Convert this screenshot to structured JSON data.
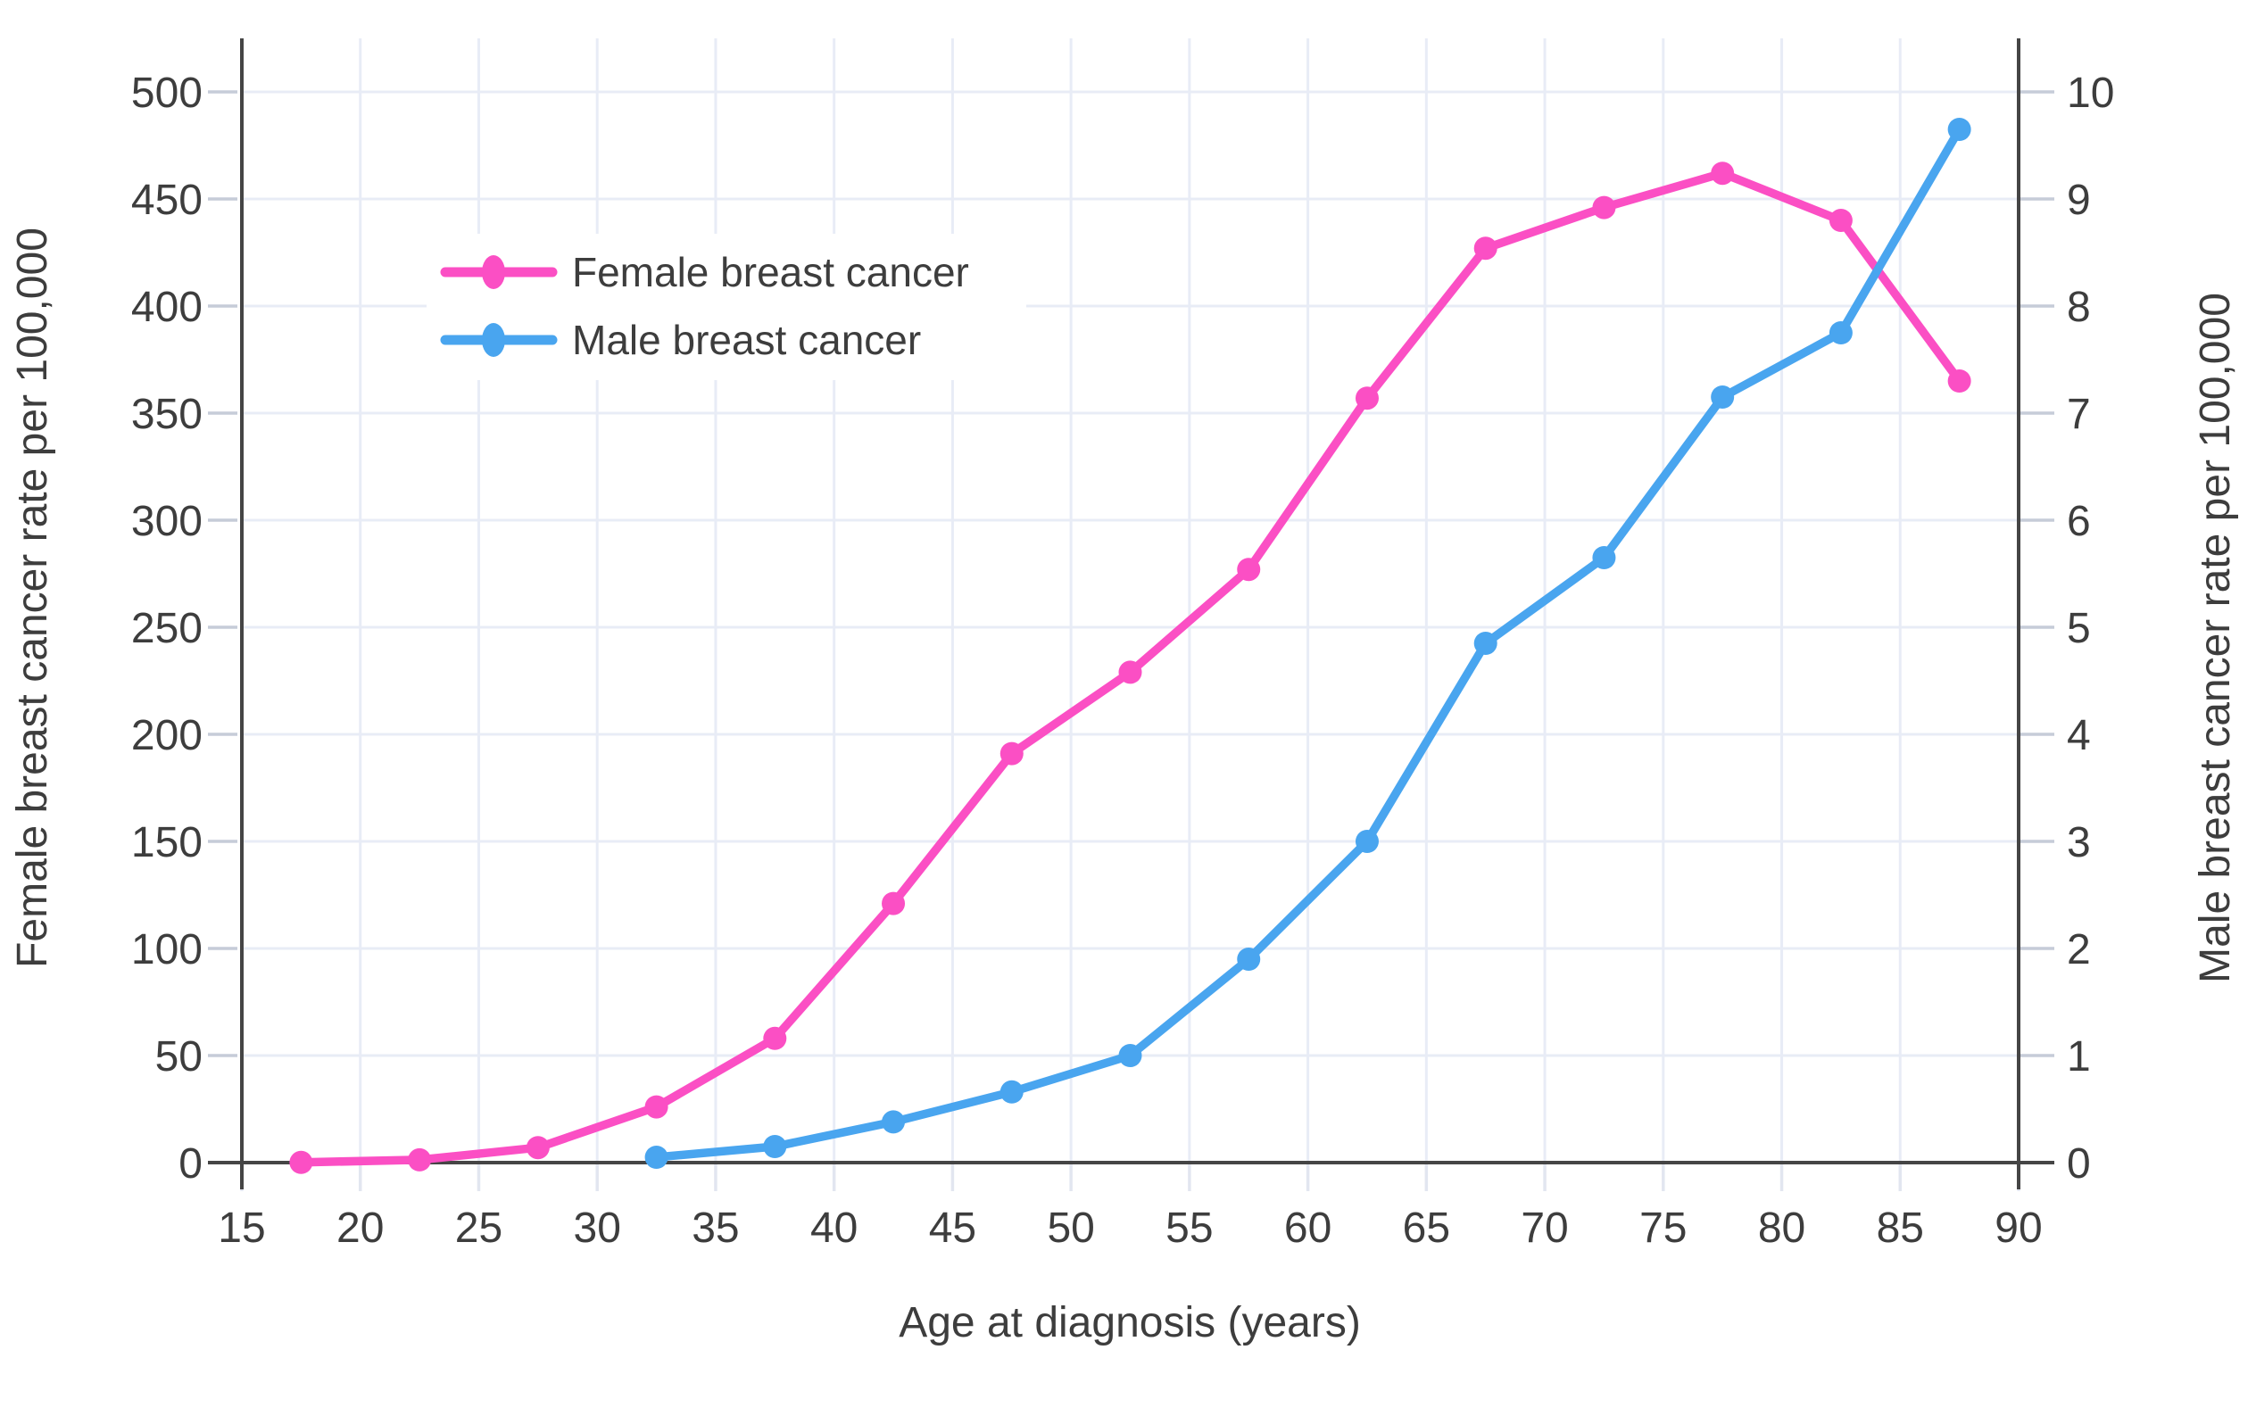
{
  "chart_data": {
    "type": "line",
    "xlabel": "Age at diagnosis (years)",
    "left_ylabel": "Female breast cancer rate per 100,000",
    "right_ylabel": "Male breast cancer rate per 100,000",
    "x_ticks": [
      15,
      20,
      25,
      30,
      35,
      40,
      45,
      50,
      55,
      60,
      65,
      70,
      75,
      80,
      85,
      90
    ],
    "xlim": [
      15,
      90
    ],
    "left_yticks": [
      0,
      50,
      100,
      150,
      200,
      250,
      300,
      350,
      400,
      450,
      500
    ],
    "left_ylim": [
      0,
      500
    ],
    "right_yticks": [
      0,
      1,
      2,
      3,
      4,
      5,
      6,
      7,
      8,
      9,
      10
    ],
    "right_ylim": [
      0,
      10
    ],
    "grid": true,
    "legend_position": "upper-left-inside",
    "series": [
      {
        "name": "Female breast cancer",
        "axis": "left",
        "color": "#fb4fc4",
        "x": [
          17.5,
          22.5,
          27.5,
          32.5,
          37.5,
          42.5,
          47.5,
          52.5,
          57.5,
          62.5,
          67.5,
          72.5,
          77.5,
          82.5,
          87.5
        ],
        "y": [
          0.1,
          1.3,
          7,
          26,
          58,
          121,
          191,
          229,
          277,
          357,
          427,
          446,
          462,
          440,
          365
        ]
      },
      {
        "name": "Male breast cancer",
        "axis": "right",
        "color": "#49a5ef",
        "x": [
          32.5,
          37.5,
          42.5,
          47.5,
          52.5,
          57.5,
          62.5,
          67.5,
          72.5,
          77.5,
          82.5,
          87.5
        ],
        "y": [
          0.05,
          0.15,
          0.38,
          0.66,
          1.0,
          1.9,
          3.0,
          4.85,
          5.65,
          7.15,
          7.75,
          9.65
        ]
      }
    ],
    "colors": {
      "female_line": "#fb4fc4",
      "male_line": "#49a5ef",
      "gridline": "#e8ecf6",
      "axis_line": "#454545",
      "side_tick": "#c6ccd8",
      "bottom_tick": "#e2e6f0",
      "text": "#3d3d3d",
      "background": "#ffffff",
      "legend_background": "#ffffff"
    }
  }
}
